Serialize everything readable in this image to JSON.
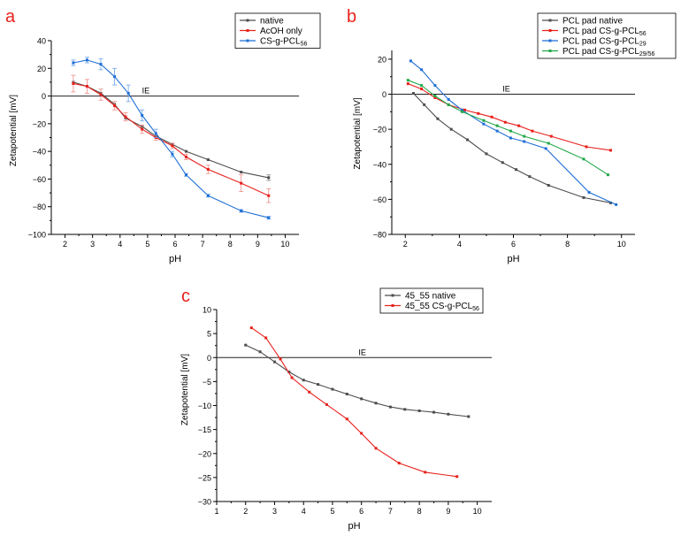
{
  "panels": [
    {
      "letter": "a",
      "color": "#e8211c"
    },
    {
      "letter": "b",
      "color": "#e8211c"
    },
    {
      "letter": "c",
      "color": "#e8211c"
    }
  ],
  "chart_data": [
    {
      "type": "line",
      "panel": "a",
      "xlabel": "pH",
      "ylabel": "Zetapotential [mV]",
      "xlim": [
        1.5,
        10.5
      ],
      "ylim": [
        -100,
        40
      ],
      "xticks": [
        2,
        3,
        4,
        5,
        6,
        7,
        8,
        9,
        10
      ],
      "yticks": [
        -100,
        -80,
        -60,
        -40,
        -20,
        0,
        20,
        40
      ],
      "reference_line": {
        "y": 0,
        "label": "IE",
        "label_x": 4.8
      },
      "legend_position": "top-right",
      "series": [
        {
          "name": "native",
          "name_sub": "",
          "color": "#4d4d4d",
          "x": [
            2.3,
            2.8,
            3.3,
            3.8,
            4.2,
            4.8,
            5.3,
            5.9,
            6.4,
            7.2,
            8.4,
            9.4
          ],
          "y": [
            10,
            7,
            2,
            -6,
            -16,
            -22,
            -29,
            -35,
            -40,
            -46,
            -55,
            -59
          ],
          "err": [
            0,
            0,
            0,
            0,
            0,
            0,
            0,
            0,
            0,
            0,
            0,
            2
          ]
        },
        {
          "name": "AcOH only",
          "name_sub": "",
          "color": "#e8211c",
          "x": [
            2.3,
            2.8,
            3.3,
            3.8,
            4.2,
            4.8,
            5.3,
            5.9,
            6.4,
            7.2,
            8.4,
            9.4
          ],
          "y": [
            9,
            7,
            1,
            -7,
            -15,
            -24,
            -30,
            -36,
            -44,
            -53,
            -63,
            -72
          ],
          "err": [
            6,
            5,
            4,
            3,
            3,
            3,
            2,
            2,
            2,
            3,
            6,
            5
          ]
        },
        {
          "name": "CS-g-PCL",
          "name_sub": "56",
          "color": "#1f6fd6",
          "x": [
            2.3,
            2.8,
            3.3,
            3.8,
            4.3,
            4.8,
            5.3,
            5.9,
            6.4,
            7.2,
            8.4,
            9.4
          ],
          "y": [
            24,
            26,
            23,
            14,
            2,
            -14,
            -27,
            -42,
            -57,
            -72,
            -83,
            -88
          ],
          "err": [
            2,
            2,
            4,
            6,
            6,
            4,
            3,
            2,
            1,
            1,
            1,
            1
          ]
        }
      ]
    },
    {
      "type": "line",
      "panel": "b",
      "xlabel": "pH",
      "ylabel": "Zetapotential [mV]",
      "xlim": [
        1.5,
        10.5
      ],
      "ylim": [
        -80,
        25
      ],
      "xticks": [
        2,
        4,
        6,
        8,
        10
      ],
      "yticks": [
        -80,
        -60,
        -40,
        -20,
        0,
        20
      ],
      "reference_line": {
        "y": 0,
        "label": "IE",
        "label_x": 5.6
      },
      "legend_position": "top-right",
      "series": [
        {
          "name": "PCL pad native",
          "name_sub": "",
          "color": "#4d4d4d",
          "x": [
            2.3,
            2.7,
            3.2,
            3.7,
            4.3,
            5.0,
            5.6,
            6.1,
            6.6,
            7.3,
            8.6,
            9.6
          ],
          "y": [
            0.5,
            -6,
            -14,
            -20,
            -26,
            -34,
            -39,
            -43,
            -47,
            -52,
            -59,
            -62
          ]
        },
        {
          "name": "PCL pad CS-g-PCL",
          "name_sub": "56",
          "color": "#e8211c",
          "x": [
            2.1,
            2.6,
            3.1,
            3.6,
            4.2,
            4.7,
            5.2,
            5.7,
            6.2,
            6.7,
            7.4,
            8.7,
            9.6
          ],
          "y": [
            6,
            3,
            -2,
            -6,
            -9,
            -11,
            -13,
            -16,
            -18,
            -21,
            -24,
            -30,
            -32
          ]
        },
        {
          "name": "PCL pad CS-g-PCL",
          "name_sub": "29",
          "color": "#1f6fd6",
          "x": [
            2.2,
            2.6,
            3.1,
            3.6,
            4.1,
            4.9,
            5.4,
            5.9,
            6.4,
            7.2,
            8.8,
            9.8
          ],
          "y": [
            19,
            14,
            5,
            -3,
            -9,
            -17,
            -21,
            -25,
            -27,
            -31,
            -56,
            -63
          ]
        },
        {
          "name": "PCL pad CS-g-PCL",
          "name_sub": "29/56",
          "color": "#22a84a",
          "x": [
            2.1,
            2.6,
            3.1,
            3.6,
            4.1,
            4.9,
            5.4,
            5.9,
            6.4,
            7.3,
            8.6,
            9.5
          ],
          "y": [
            8,
            5,
            -1,
            -6,
            -10,
            -15,
            -18,
            -21,
            -24,
            -28,
            -37,
            -46
          ]
        }
      ]
    },
    {
      "type": "line",
      "panel": "c",
      "xlabel": "pH",
      "ylabel": "Zetapotential [mV]",
      "xlim": [
        1,
        10.5
      ],
      "ylim": [
        -30,
        10
      ],
      "xticks": [
        1,
        2,
        3,
        4,
        5,
        6,
        7,
        8,
        9,
        10
      ],
      "yticks": [
        -30,
        -25,
        -20,
        -15,
        -10,
        -5,
        0,
        5,
        10
      ],
      "reference_line": {
        "y": 0,
        "label": "IE",
        "label_x": 5.9
      },
      "legend_position": "top-right",
      "series": [
        {
          "name": "45_55 native",
          "name_sub": "",
          "color": "#4d4d4d",
          "x": [
            2.0,
            2.5,
            3.0,
            3.5,
            4.0,
            4.5,
            5.0,
            5.5,
            6.0,
            6.5,
            7.0,
            7.5,
            8.0,
            8.5,
            9.0,
            9.7
          ],
          "y": [
            2.6,
            1.2,
            -0.9,
            -3.0,
            -4.7,
            -5.6,
            -6.6,
            -7.6,
            -8.6,
            -9.5,
            -10.3,
            -10.8,
            -11.1,
            -11.4,
            -11.8,
            -12.3
          ]
        },
        {
          "name": "45_55 CS-g-PCL",
          "name_sub": "56",
          "color": "#e8211c",
          "x": [
            2.2,
            2.7,
            3.2,
            3.6,
            4.2,
            4.8,
            5.5,
            6.0,
            6.5,
            7.3,
            8.2,
            9.3
          ],
          "y": [
            6.2,
            4.1,
            -0.3,
            -4.2,
            -7.2,
            -9.8,
            -12.8,
            -15.8,
            -18.9,
            -22.0,
            -23.9,
            -24.8
          ]
        }
      ]
    }
  ]
}
